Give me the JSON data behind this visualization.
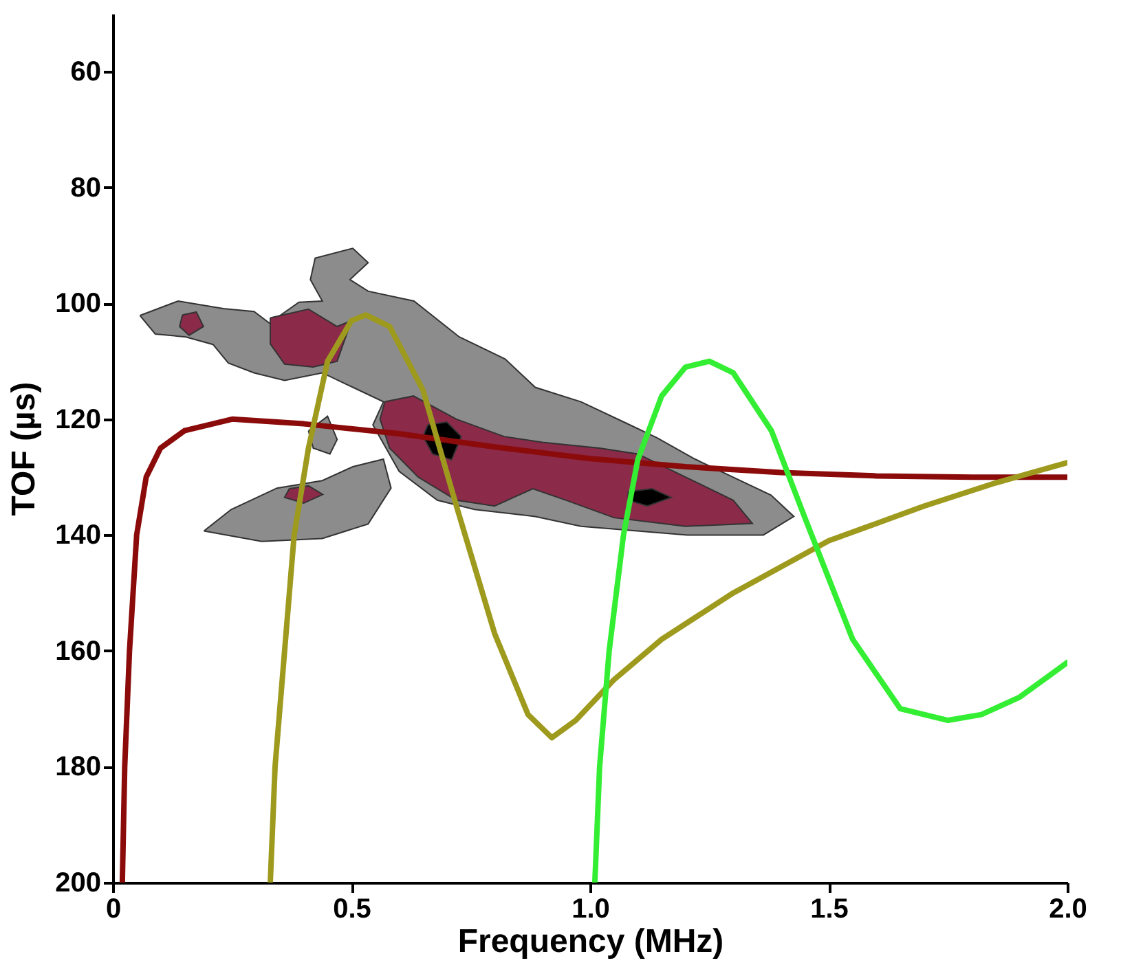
{
  "chart_data": {
    "type": "line",
    "xlabel": "Frequency (MHz)",
    "ylabel": "TOF (µs)",
    "xlim": [
      0,
      2
    ],
    "ylim": [
      200,
      50
    ],
    "xticks": [
      0,
      0.5,
      {
        "value": 1,
        "label": "1.0"
      },
      1.5,
      {
        "value": 2,
        "label": "2.0"
      }
    ],
    "yticks": [
      60,
      80,
      100,
      120,
      140,
      160,
      180,
      200
    ],
    "grid": false,
    "line_style": "solid",
    "marker": "none",
    "series": [
      {
        "type": "area",
        "color": "#8c8c8c",
        "x": [
          0.057,
          0.137,
          0.232,
          0.296,
          0.328,
          0.39,
          0.439,
          0.414,
          0.424,
          0.503,
          0.535,
          0.497,
          0.535,
          0.631,
          0.726,
          0.822,
          0.885,
          0.981,
          1.076,
          1.14,
          1.22,
          1.379,
          1.427,
          1.363,
          1.204,
          0.981,
          0.885,
          0.758,
          0.68,
          0.6,
          0.545,
          0.567,
          0.503,
          0.439,
          0.36,
          0.296,
          0.242,
          0.21,
          0.153,
          0.089,
          0.057
        ],
        "values": [
          102.1,
          99.6,
          100.9,
          101.4,
          103.4,
          99.8,
          99.6,
          95.9,
          92.2,
          90.5,
          93.0,
          95.9,
          97.9,
          99.6,
          105.8,
          109.6,
          114.5,
          117.0,
          120.7,
          123.2,
          126.9,
          133.1,
          136.8,
          140.0,
          140.0,
          138.5,
          136.8,
          135.6,
          134,
          129,
          121,
          117.0,
          114.5,
          112.0,
          113.3,
          112.0,
          110.3,
          107.1,
          105.8,
          105.3,
          102.1
        ]
      },
      {
        "type": "area",
        "color": "#8c8c8c",
        "x": [
          0.191,
          0.248,
          0.344,
          0.439,
          0.503,
          0.567,
          0.583,
          0.535,
          0.439,
          0.312,
          0.191
        ],
        "values": [
          139.3,
          135.6,
          131.9,
          130.6,
          128.2,
          126.9,
          131.9,
          138.1,
          140.6,
          141.1,
          139.3
        ]
      },
      {
        "type": "area",
        "color": "#8c8c8c",
        "x": [
          0.41,
          0.45,
          0.47,
          0.455,
          0.42,
          0.41
        ],
        "values": [
          122,
          119.5,
          123.5,
          126,
          125,
          122
        ]
      },
      {
        "type": "area",
        "color": "#8c2a4a",
        "x": [
          0.146,
          0.175,
          0.19,
          0.16,
          0.14,
          0.146
        ],
        "values": [
          102,
          101.5,
          104,
          105.5,
          104,
          102
        ]
      },
      {
        "type": "area",
        "color": "#8c2a4a",
        "x": [
          0.33,
          0.41,
          0.47,
          0.5,
          0.47,
          0.42,
          0.36,
          0.33,
          0.33
        ],
        "values": [
          102.5,
          101,
          104,
          103,
          110,
          111,
          110.5,
          107,
          102.5
        ]
      },
      {
        "type": "area",
        "color": "#8c2a4a",
        "x": [
          0.57,
          0.63,
          0.72,
          0.82,
          0.9,
          1.02,
          1.1,
          1.2,
          1.3,
          1.34,
          1.2,
          1.05,
          0.95,
          0.88,
          0.8,
          0.72,
          0.64,
          0.58,
          0.56,
          0.57
        ],
        "values": [
          117,
          116,
          120,
          123,
          124,
          125,
          126,
          130,
          134,
          138,
          138.5,
          137,
          134,
          132,
          135,
          134,
          130,
          125,
          120,
          117
        ]
      },
      {
        "type": "area",
        "color": "#8c2a4a",
        "x": [
          0.37,
          0.41,
          0.44,
          0.4,
          0.36,
          0.37
        ],
        "values": [
          132,
          131.5,
          133,
          134.5,
          133.5,
          132
        ]
      },
      {
        "type": "area",
        "color": "#000000",
        "x": [
          0.66,
          0.7,
          0.73,
          0.71,
          0.67,
          0.65,
          0.66
        ],
        "values": [
          121,
          120.5,
          123,
          127,
          126,
          123,
          121
        ]
      },
      {
        "type": "area",
        "color": "#000000",
        "x": [
          1.08,
          1.13,
          1.17,
          1.12,
          1.08,
          1.08
        ],
        "values": [
          132.5,
          132,
          133.5,
          135,
          134,
          132.5
        ]
      },
      {
        "color": "#8b0a0a",
        "x": [
          0.02,
          0.025,
          0.035,
          0.05,
          0.07,
          0.1,
          0.15,
          0.25,
          0.4,
          0.6,
          0.8,
          1.0,
          1.2,
          1.4,
          1.6,
          1.8,
          2.0
        ],
        "values": [
          200,
          180,
          160,
          140,
          130,
          125,
          122,
          120,
          120.8,
          122.5,
          124.8,
          126.8,
          128.2,
          129.2,
          129.8,
          130,
          130
        ]
      },
      {
        "color": "#9e9a1e",
        "x": [
          0.33,
          0.34,
          0.36,
          0.38,
          0.41,
          0.45,
          0.5,
          0.53,
          0.58,
          0.65,
          0.72,
          0.8,
          0.87,
          0.92,
          0.97,
          1.05,
          1.15,
          1.3,
          1.5,
          1.7,
          1.85,
          2.0
        ],
        "values": [
          200,
          180,
          160,
          140,
          125,
          110,
          103,
          102,
          104,
          115,
          135,
          157,
          171,
          175,
          172,
          165,
          158,
          150,
          141,
          135,
          131,
          127.5
        ]
      },
      {
        "color": "#33ee33",
        "x": [
          1.01,
          1.02,
          1.04,
          1.07,
          1.1,
          1.15,
          1.2,
          1.25,
          1.3,
          1.38,
          1.45,
          1.55,
          1.65,
          1.75,
          1.82,
          1.9,
          2.0
        ],
        "values": [
          200,
          180,
          160,
          140,
          127,
          116,
          111,
          110,
          112,
          122,
          137,
          158,
          170,
          172,
          171,
          168,
          162
        ]
      }
    ]
  }
}
